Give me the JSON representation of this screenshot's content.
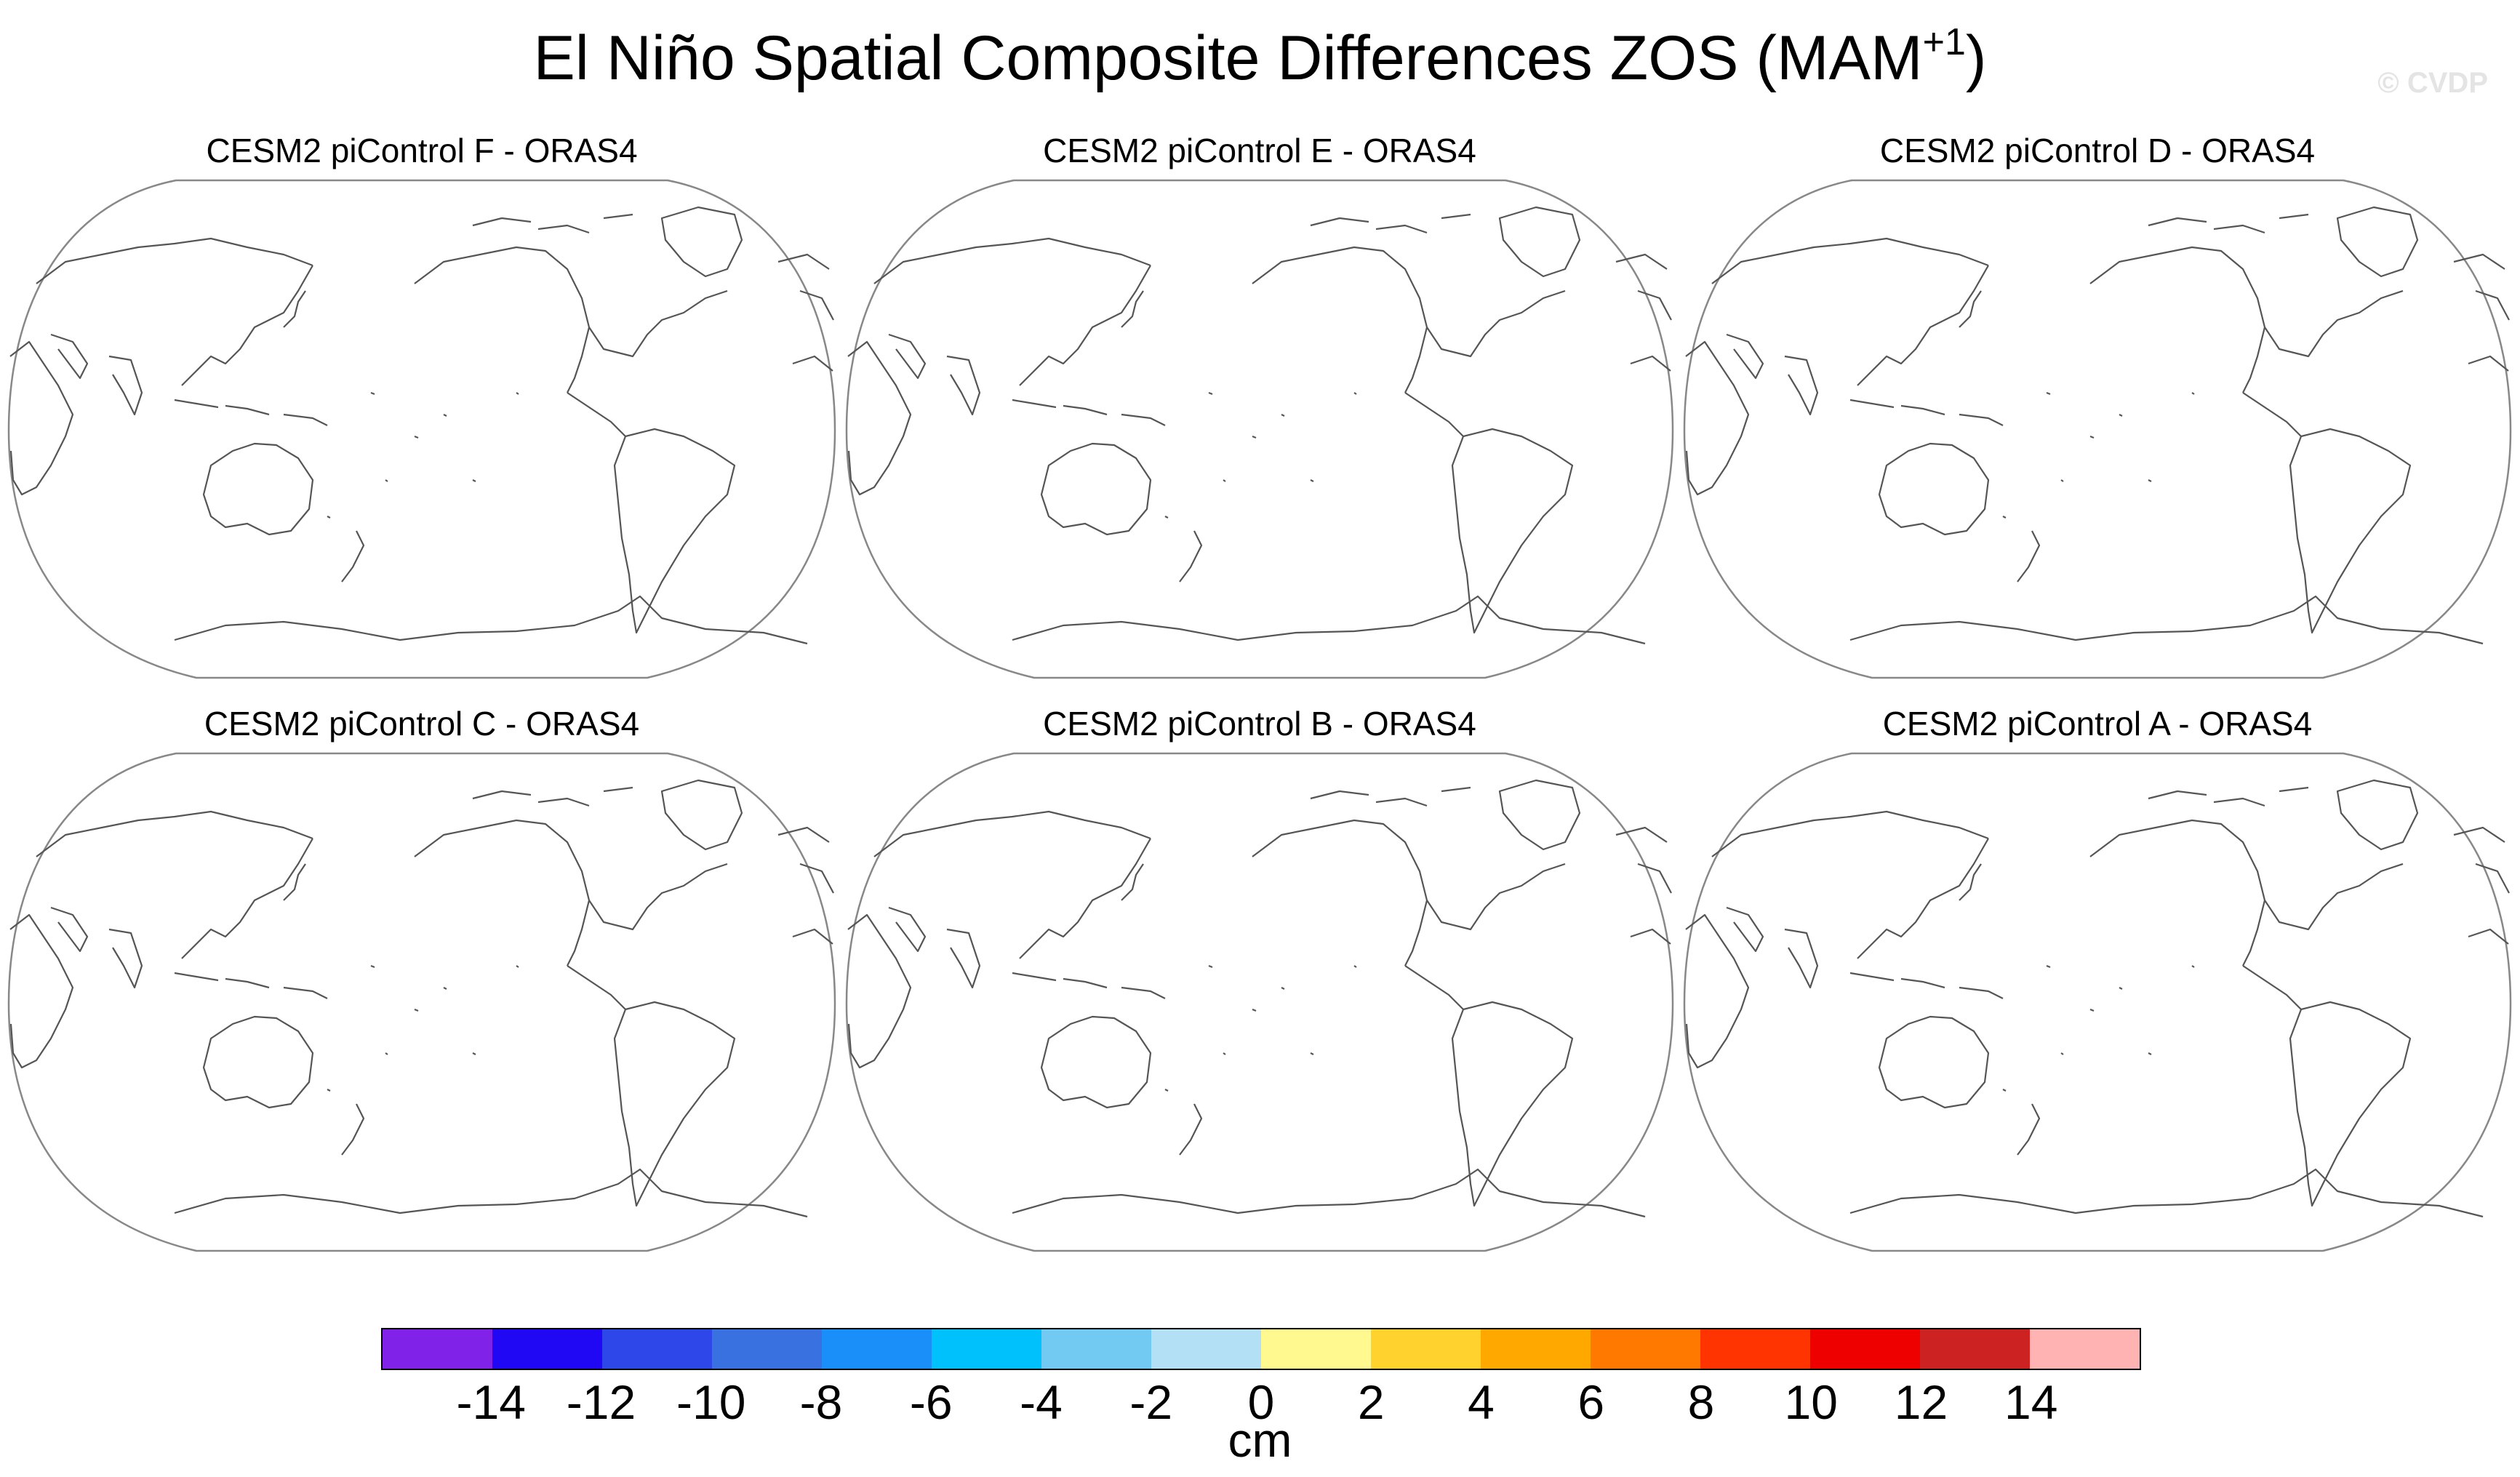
{
  "title": {
    "main": "El Niño Spatial Composite Differences ZOS (MAM",
    "superscript": "+1",
    "close": ")"
  },
  "watermark": "© CVDP",
  "panels": [
    {
      "label": "CESM2 piControl F - ORAS4"
    },
    {
      "label": "CESM2 piControl E - ORAS4"
    },
    {
      "label": "CESM2 piControl D - ORAS4"
    },
    {
      "label": "CESM2 piControl C - ORAS4"
    },
    {
      "label": "CESM2 piControl B - ORAS4"
    },
    {
      "label": "CESM2 piControl A - ORAS4"
    }
  ],
  "colorbar": {
    "unit": "cm",
    "ticks": [
      "-14",
      "-12",
      "-10",
      "-8",
      "-6",
      "-4",
      "-2",
      "0",
      "2",
      "4",
      "6",
      "8",
      "10",
      "12",
      "14"
    ],
    "colors": [
      "#8122e8",
      "#2008f5",
      "#2e47e8",
      "#3a71e0",
      "#1b8ff9",
      "#00c1fb",
      "#72c9f2",
      "#b3e0f5",
      "#fff98f",
      "#ffd22e",
      "#ffa800",
      "#ff7800",
      "#ff3400",
      "#ee0000",
      "#cd2222",
      "#ffb3b3"
    ]
  }
}
